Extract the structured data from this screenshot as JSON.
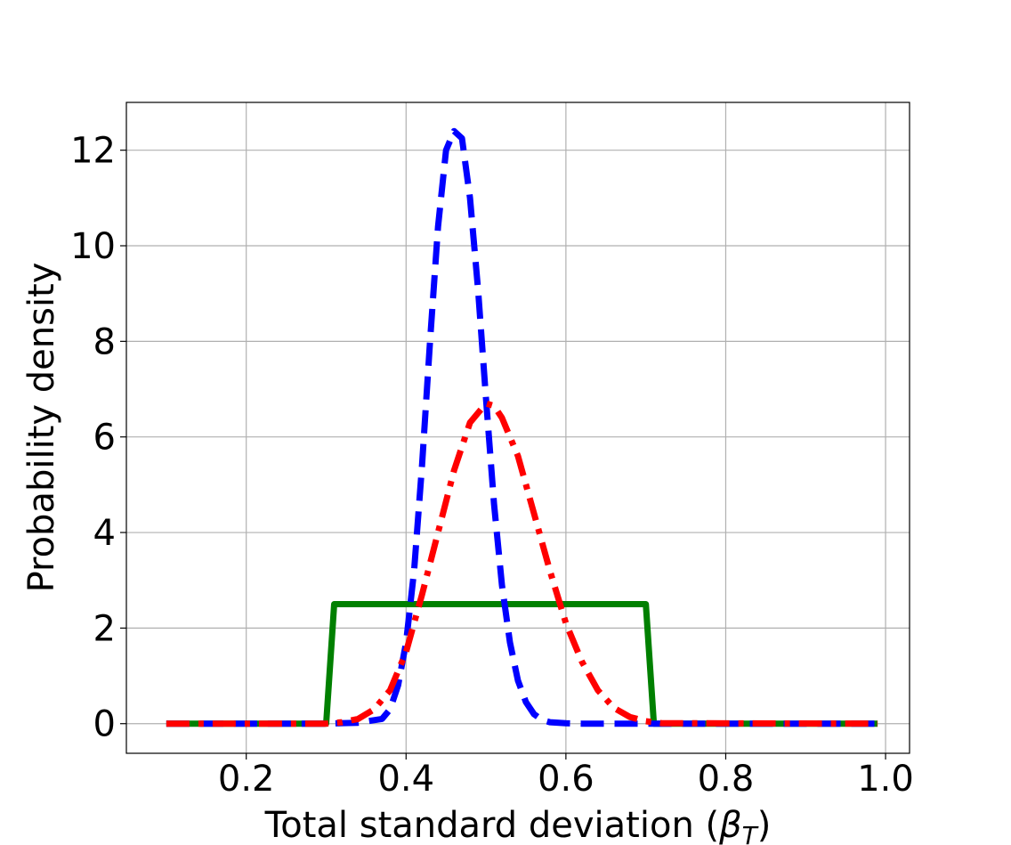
{
  "chart_data": {
    "type": "line",
    "title": "",
    "xlabel": "Total standard deviation (",
    "xlabel_symbol": "β",
    "xlabel_subscript": "T",
    "xlabel_close": ")",
    "ylabel": "Probability density",
    "xlim": [
      0.05,
      1.03
    ],
    "ylim": [
      -0.62,
      13.0
    ],
    "x_ticks": [
      "0.2",
      "0.4",
      "0.6",
      "0.8",
      "1.0"
    ],
    "y_ticks": [
      "0",
      "2",
      "4",
      "6",
      "8",
      "10",
      "12"
    ],
    "grid": true,
    "legend": "none",
    "series": [
      {
        "style": "solid",
        "color": "#008000",
        "x": [
          0.1,
          0.3,
          0.31,
          0.7,
          0.71,
          0.99
        ],
        "y": [
          0,
          0,
          2.5,
          2.5,
          0,
          0
        ]
      },
      {
        "style": "dashed",
        "color": "#0000ff",
        "x": [
          0.1,
          0.3,
          0.34,
          0.37,
          0.38,
          0.39,
          0.4,
          0.41,
          0.42,
          0.43,
          0.44,
          0.45,
          0.46,
          0.47,
          0.48,
          0.49,
          0.5,
          0.51,
          0.52,
          0.53,
          0.54,
          0.55,
          0.56,
          0.57,
          0.58,
          0.6,
          0.62,
          0.99
        ],
        "y": [
          0,
          0,
          0.02,
          0.1,
          0.3,
          0.8,
          1.7,
          3.2,
          5.4,
          8.0,
          10.4,
          12.0,
          12.4,
          12.25,
          11.0,
          9.1,
          6.8,
          4.6,
          2.9,
          1.7,
          0.9,
          0.45,
          0.2,
          0.08,
          0.03,
          0.01,
          0,
          0
        ]
      },
      {
        "style": "dashdot",
        "color": "#ff0000",
        "x": [
          0.1,
          0.3,
          0.32,
          0.34,
          0.36,
          0.38,
          0.4,
          0.42,
          0.44,
          0.46,
          0.48,
          0.5,
          0.51,
          0.52,
          0.54,
          0.56,
          0.58,
          0.6,
          0.62,
          0.64,
          0.66,
          0.68,
          0.7,
          0.72,
          0.99
        ],
        "y": [
          0,
          0,
          0.03,
          0.1,
          0.3,
          0.7,
          1.5,
          2.7,
          4.0,
          5.3,
          6.3,
          6.7,
          6.65,
          6.4,
          5.6,
          4.4,
          3.2,
          2.1,
          1.3,
          0.7,
          0.33,
          0.14,
          0.05,
          0.01,
          0
        ]
      }
    ]
  }
}
